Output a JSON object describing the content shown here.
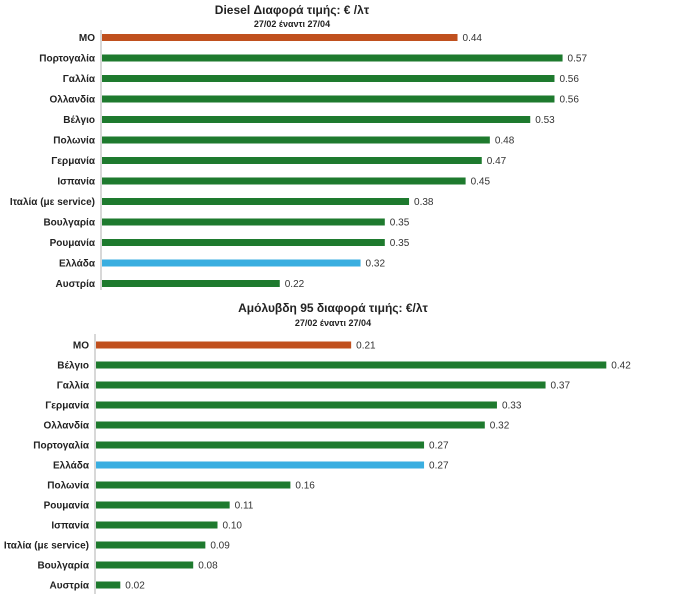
{
  "colors": {
    "avg": "#c0501e",
    "country": "#1e7a2e",
    "greece": "#3aaee0",
    "axis": "#b0b0b0"
  },
  "chart_data": [
    {
      "type": "bar",
      "orientation": "horizontal",
      "title": "Diesel Διαφορά τιμής: € /λτ",
      "subtitle": "27/02 έναντι 27/04",
      "categories": [
        "ΜΟ",
        "Πορτογαλία",
        "Γαλλία",
        "Ολλανδία",
        "Βέλγιο",
        "Πολωνία",
        "Γερμανία",
        "Ισπανία",
        "Ιταλία (με service)",
        "Βουλγαρία",
        "Ρουμανία",
        "Ελλάδα",
        "Αυστρία"
      ],
      "values": [
        0.44,
        0.57,
        0.56,
        0.56,
        0.53,
        0.48,
        0.47,
        0.45,
        0.38,
        0.35,
        0.35,
        0.32,
        0.22
      ],
      "labels": [
        "0.44",
        "0.57",
        "0.56",
        "0.56",
        "0.53",
        "0.48",
        "0.47",
        "0.45",
        "0.38",
        "0.35",
        "0.35",
        "0.32",
        "0.22"
      ],
      "highlight": {
        "ΜΟ": "avg",
        "Ελλάδα": "greece"
      },
      "xlim": [
        0,
        0.6
      ]
    },
    {
      "type": "bar",
      "orientation": "horizontal",
      "title": "Αμόλυβδη 95 διαφορά τιμής: €/λτ",
      "subtitle": "27/02 έναντι 27/04",
      "categories": [
        "ΜΟ",
        "Βέλγιο",
        "Γαλλία",
        "Γερμανία",
        "Ολλανδία",
        "Πορτογαλία",
        "Ελλάδα",
        "Πολωνία",
        "Ρουμανία",
        "Ισπανία",
        "Ιταλία (με service)",
        "Βουλγαρία",
        "Αυστρία"
      ],
      "values": [
        0.21,
        0.42,
        0.37,
        0.33,
        0.32,
        0.27,
        0.27,
        0.16,
        0.11,
        0.1,
        0.09,
        0.08,
        0.02
      ],
      "labels": [
        "0.21",
        "0.42",
        "0.37",
        "0.33",
        "0.32",
        "0.27",
        "0.27",
        "0.16",
        "0.11",
        "0.10",
        "0.09",
        "0.08",
        "0.02"
      ],
      "highlight": {
        "ΜΟ": "avg",
        "Ελλάδα": "greece"
      },
      "xlim": [
        0,
        0.42
      ]
    }
  ]
}
